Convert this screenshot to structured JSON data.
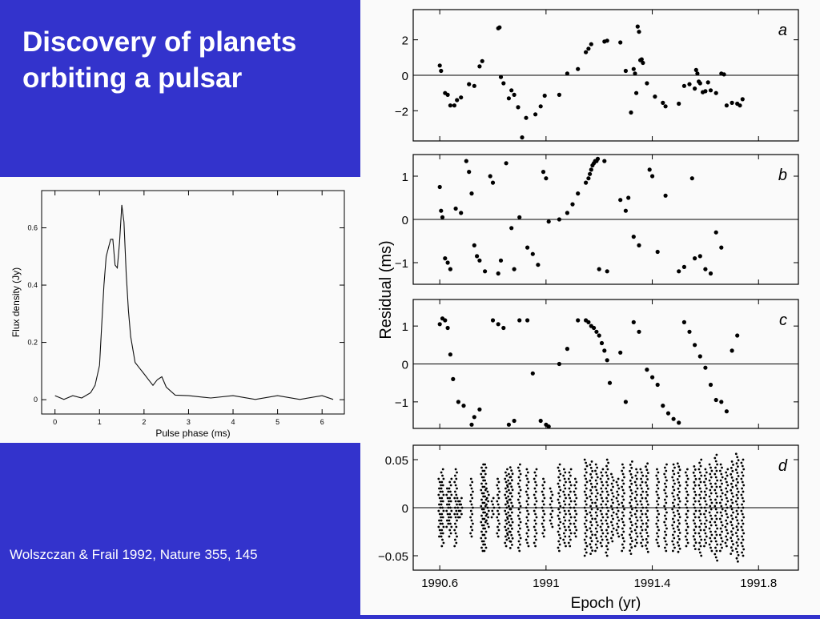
{
  "slide": {
    "title": "Discovery of planets orbiting a pulsar",
    "citation": "Wolszczan & Frail 1992, Nature 355, 145",
    "background_color": "#3333cc"
  },
  "chart_data": [
    {
      "type": "line",
      "xlabel": "Pulse phase (ms)",
      "ylabel": "Flux density (Jy)",
      "xlim": [
        -0.3,
        6.5
      ],
      "ylim": [
        -0.05,
        0.73
      ],
      "x_ticks": [
        0,
        1,
        2,
        3,
        4,
        5,
        6
      ],
      "y_ticks": [
        0,
        0.2,
        0.4,
        0.6
      ],
      "y_tick_labels": [
        "0",
        "0.2",
        "0.4",
        "0.6"
      ],
      "series": [
        {
          "x": [
            0.0,
            0.2,
            0.4,
            0.6,
            0.8,
            0.9,
            1.0,
            1.05,
            1.1,
            1.15,
            1.2,
            1.25,
            1.3,
            1.35,
            1.4,
            1.45,
            1.5,
            1.55,
            1.6,
            1.65,
            1.7,
            1.8,
            1.9,
            2.0,
            2.1,
            2.2,
            2.3,
            2.4,
            2.5,
            2.7,
            3.0,
            3.5,
            4.0,
            4.5,
            5.0,
            5.5,
            6.0,
            6.25
          ],
          "y": [
            0.01,
            0.005,
            0.01,
            0.01,
            0.02,
            0.05,
            0.12,
            0.26,
            0.4,
            0.5,
            0.53,
            0.56,
            0.56,
            0.47,
            0.46,
            0.55,
            0.68,
            0.62,
            0.44,
            0.31,
            0.22,
            0.13,
            0.11,
            0.09,
            0.07,
            0.05,
            0.07,
            0.08,
            0.04,
            0.02,
            0.01,
            0.01,
            0.01,
            0.005,
            0.01,
            0.005,
            0.01,
            0.005
          ]
        }
      ]
    },
    {
      "type": "scatter",
      "panel_label": "a",
      "ylabel": "Residual (ms)",
      "xlim": [
        1990.5,
        1991.95
      ],
      "ylim": [
        -3.7,
        3.7
      ],
      "y_ticks": [
        2,
        0,
        -2
      ],
      "y_tick_labels": [
        "2",
        "0",
        "−2"
      ],
      "x": [
        1990.6,
        1990.605,
        1990.62,
        1990.63,
        1990.64,
        1990.655,
        1990.665,
        1990.68,
        1990.71,
        1990.73,
        1990.75,
        1990.76,
        1990.82,
        1990.825,
        1990.83,
        1990.84,
        1990.86,
        1990.87,
        1990.88,
        1990.895,
        1990.91,
        1990.925,
        1990.96,
        1990.98,
        1990.995,
        1991.05,
        1991.08,
        1991.12,
        1991.15,
        1991.16,
        1991.17,
        1991.22,
        1991.23,
        1991.28,
        1991.3,
        1991.32,
        1991.33,
        1991.335,
        1991.34,
        1991.345,
        1991.35,
        1991.355,
        1991.36,
        1991.365,
        1991.38,
        1991.41,
        1991.44,
        1991.45,
        1991.5,
        1991.52,
        1991.54,
        1991.56,
        1991.565,
        1991.57,
        1991.575,
        1991.58,
        1991.59,
        1991.6,
        1991.61,
        1991.62,
        1991.64,
        1991.66,
        1991.67,
        1991.68,
        1991.7,
        1991.72,
        1991.73,
        1991.74
      ],
      "y": [
        0.55,
        0.25,
        -1.0,
        -1.1,
        -1.7,
        -1.7,
        -1.4,
        -1.25,
        -0.5,
        -0.6,
        0.5,
        0.8,
        2.65,
        2.7,
        -0.1,
        -0.45,
        -1.3,
        -0.85,
        -1.1,
        -1.8,
        -3.5,
        -2.4,
        -2.2,
        -1.75,
        -1.15,
        -1.1,
        0.1,
        0.35,
        1.3,
        1.5,
        1.75,
        1.9,
        1.95,
        1.85,
        0.25,
        -2.1,
        0.35,
        0.1,
        -1.0,
        2.75,
        2.45,
        0.85,
        0.9,
        0.7,
        -0.45,
        -1.2,
        -1.55,
        -1.75,
        -1.6,
        -0.6,
        -0.5,
        -0.75,
        0.3,
        0.1,
        -0.35,
        -0.45,
        -0.95,
        -0.9,
        -0.4,
        -0.85,
        -1.0,
        0.1,
        0.05,
        -1.7,
        -1.55,
        -1.6,
        -1.7,
        -1.35
      ]
    },
    {
      "type": "scatter",
      "panel_label": "b",
      "ylim": [
        -1.5,
        1.5
      ],
      "y_ticks": [
        1,
        0,
        -1
      ],
      "y_tick_labels": [
        "1",
        "0",
        "−1"
      ],
      "x": [
        1990.6,
        1990.605,
        1990.61,
        1990.62,
        1990.63,
        1990.64,
        1990.66,
        1990.68,
        1990.7,
        1990.71,
        1990.72,
        1990.73,
        1990.74,
        1990.75,
        1990.77,
        1990.79,
        1990.8,
        1990.82,
        1990.83,
        1990.85,
        1990.87,
        1990.88,
        1990.9,
        1990.93,
        1990.95,
        1990.97,
        1990.99,
        1991.0,
        1991.01,
        1991.05,
        1991.08,
        1991.1,
        1991.12,
        1991.15,
        1991.16,
        1991.165,
        1991.17,
        1991.175,
        1991.18,
        1991.185,
        1991.19,
        1991.195,
        1991.2,
        1991.22,
        1991.23,
        1991.28,
        1991.3,
        1991.31,
        1991.33,
        1991.35,
        1991.39,
        1991.4,
        1991.42,
        1991.45,
        1991.5,
        1991.52,
        1991.55,
        1991.56,
        1991.58,
        1991.6,
        1991.62,
        1991.64,
        1991.66
      ],
      "y": [
        0.75,
        0.2,
        0.05,
        -0.9,
        -1.0,
        -1.15,
        0.25,
        0.15,
        1.35,
        1.1,
        0.6,
        -0.6,
        -0.85,
        -0.95,
        -1.2,
        1.0,
        0.85,
        -1.25,
        -0.95,
        1.3,
        -0.2,
        -1.15,
        0.05,
        -0.65,
        -0.8,
        -1.05,
        1.1,
        0.95,
        -0.05,
        0.0,
        0.15,
        0.35,
        0.6,
        0.85,
        0.95,
        1.05,
        1.15,
        1.25,
        1.3,
        1.35,
        1.35,
        1.4,
        -1.15,
        1.35,
        -1.2,
        0.45,
        0.2,
        0.5,
        -0.4,
        -0.6,
        1.15,
        1.0,
        -0.75,
        0.55,
        -1.2,
        -1.1,
        0.95,
        -0.9,
        -0.85,
        -1.15,
        -1.25,
        -0.3,
        -0.65
      ]
    },
    {
      "type": "scatter",
      "panel_label": "c",
      "ylim": [
        -1.7,
        1.7
      ],
      "y_ticks": [
        1,
        0,
        -1
      ],
      "y_tick_labels": [
        "1",
        "0",
        "−1"
      ],
      "x": [
        1990.6,
        1990.61,
        1990.62,
        1990.63,
        1990.64,
        1990.65,
        1990.67,
        1990.69,
        1990.72,
        1990.73,
        1990.75,
        1990.8,
        1990.82,
        1990.84,
        1990.86,
        1990.88,
        1990.9,
        1990.93,
        1990.95,
        1990.98,
        1991.0,
        1991.01,
        1991.05,
        1991.08,
        1991.12,
        1991.15,
        1991.16,
        1991.17,
        1991.18,
        1991.19,
        1991.2,
        1991.21,
        1991.22,
        1991.23,
        1991.24,
        1991.28,
        1991.3,
        1991.33,
        1991.35,
        1991.38,
        1991.4,
        1991.42,
        1991.44,
        1991.46,
        1991.48,
        1991.5,
        1991.52,
        1991.54,
        1991.56,
        1991.58,
        1991.6,
        1991.62,
        1991.64,
        1991.66,
        1991.68,
        1991.7,
        1991.72
      ],
      "y": [
        1.05,
        1.2,
        1.15,
        0.95,
        0.25,
        -0.4,
        -1.0,
        -1.1,
        -1.6,
        -1.4,
        -1.2,
        1.15,
        1.05,
        0.95,
        -1.6,
        -1.5,
        1.15,
        1.15,
        -0.25,
        -1.5,
        -1.6,
        -1.65,
        0.0,
        0.4,
        1.15,
        1.15,
        1.1,
        1.0,
        0.95,
        0.85,
        0.75,
        0.55,
        0.35,
        0.1,
        -0.5,
        0.3,
        -1.0,
        1.1,
        0.85,
        -0.15,
        -0.35,
        -0.55,
        -1.1,
        -1.3,
        -1.45,
        -1.55,
        1.1,
        0.85,
        0.5,
        0.2,
        -0.1,
        -0.55,
        -0.95,
        -1.0,
        -1.25,
        0.35,
        0.75
      ]
    },
    {
      "type": "scatter",
      "panel_label": "d",
      "xlabel": "Epoch (yr)",
      "xlim": [
        1990.5,
        1991.95
      ],
      "ylim": [
        -0.065,
        0.065
      ],
      "x_ticks": [
        1990.6,
        1991,
        1991.4,
        1991.8
      ],
      "x_tick_labels": [
        "1990.6",
        "1991",
        "1991.4",
        "1991.8"
      ],
      "y_ticks": [
        0.05,
        0,
        -0.05
      ],
      "y_tick_labels": [
        "0.05",
        "0",
        "−0.05"
      ],
      "x": [
        1990.6,
        1990.61,
        1990.63,
        1990.64,
        1990.66,
        1990.67,
        1990.68,
        1990.72,
        1990.76,
        1990.77,
        1990.78,
        1990.8,
        1990.82,
        1990.85,
        1990.86,
        1990.87,
        1990.9,
        1990.93,
        1990.96,
        1990.99,
        1991.02,
        1991.05,
        1991.07,
        1991.09,
        1991.11,
        1991.15,
        1991.17,
        1991.19,
        1991.21,
        1991.23,
        1991.25,
        1991.27,
        1991.29,
        1991.32,
        1991.34,
        1991.36,
        1991.38,
        1991.42,
        1991.45,
        1991.48,
        1991.5,
        1991.53,
        1991.56,
        1991.58,
        1991.6,
        1991.62,
        1991.64,
        1991.66,
        1991.68,
        1991.7,
        1991.72,
        1991.74
      ],
      "y": [
        0.03,
        -0.04,
        0.02,
        -0.03,
        0.04,
        -0.01,
        0.01,
        0.03,
        0.045,
        -0.045,
        0.02,
        0.01,
        -0.03,
        0.04,
        0.035,
        -0.042,
        -0.045,
        -0.04,
        0.04,
        0.03,
        -0.02,
        0.045,
        0.04,
        -0.04,
        0.03,
        0.05,
        0.048,
        -0.045,
        0.04,
        -0.05,
        0.035,
        -0.03,
        0.045,
        0.048,
        -0.04,
        0.04,
        -0.046,
        0.04,
        -0.045,
        0.045,
        0.046,
        -0.04,
        0.043,
        0.05,
        -0.04,
        0.045,
        0.055,
        -0.045,
        0.04,
        0.048,
        0.056,
        -0.05
      ]
    }
  ]
}
